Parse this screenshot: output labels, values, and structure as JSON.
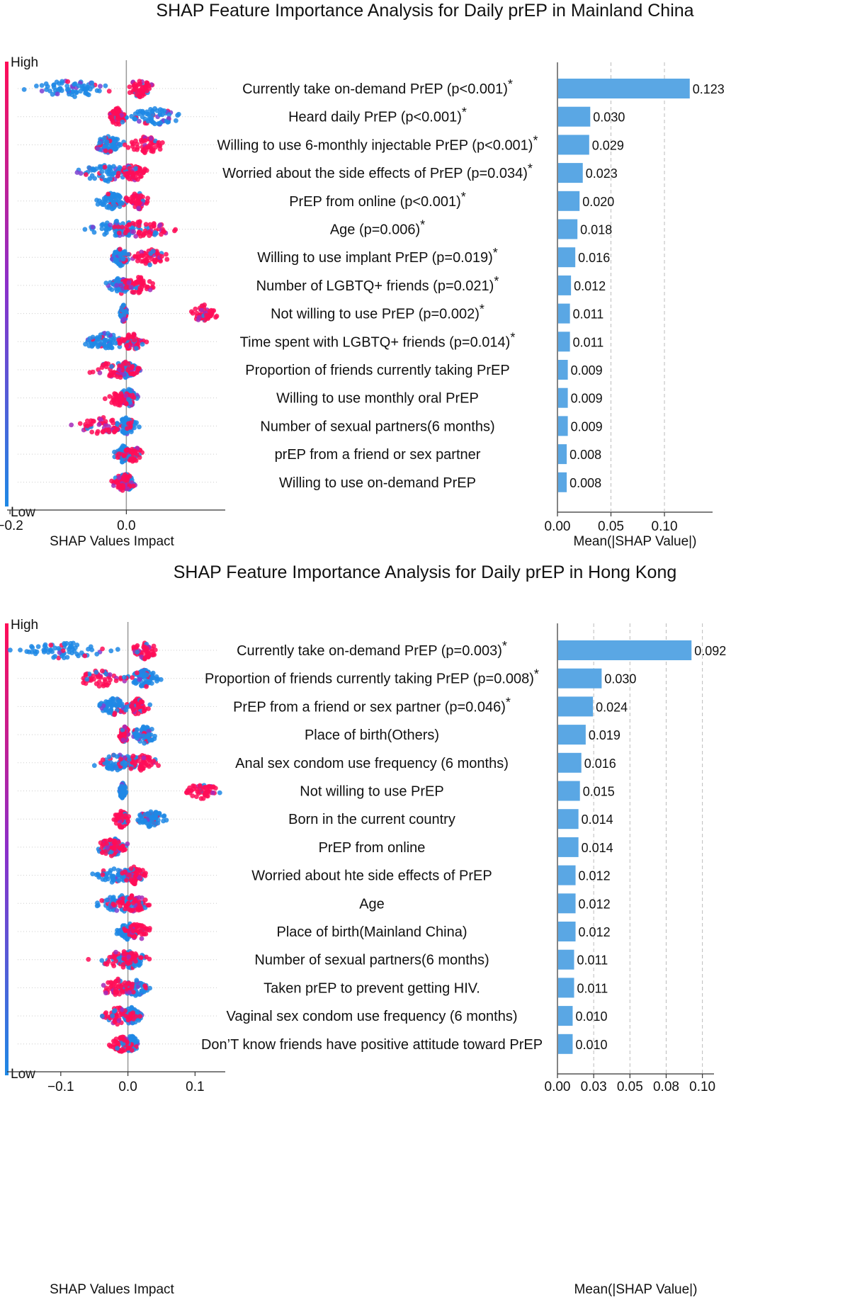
{
  "chart_data": [
    {
      "type": "bar",
      "title": "SHAP Feature Importance Analysis for Daily prEP in Mainland China",
      "summary_plot": {
        "xlabel": "SHAP Values Impact",
        "xticks": [
          "−0.2",
          "0.0"
        ],
        "xlim": [
          -0.205,
          0.17
        ],
        "colorbar": {
          "high_label": "High",
          "low_label": "Low",
          "high_color": "#ff0d57",
          "low_color": "#1e88e5"
        }
      },
      "bar_plot": {
        "xlabel": "Mean(|SHAP Value|)",
        "xticks": [
          "0.00",
          "0.05",
          "0.10"
        ],
        "xlim": [
          0,
          0.145
        ],
        "bar_color": "#5aa7e4"
      },
      "features": [
        {
          "name": "Currently take on-demand PrEP (p<0.001)",
          "star": "*",
          "value": 0.123,
          "value_label": "0.123",
          "low_center": -0.095,
          "low_spread": 0.09,
          "high_center": 0.022,
          "high_spread": 0.035
        },
        {
          "name": "Heard daily PrEP (p<0.001)",
          "star": "*",
          "value": 0.03,
          "value_label": "0.030",
          "low_center": 0.05,
          "low_spread": 0.06,
          "high_center": -0.015,
          "high_spread": 0.02
        },
        {
          "name": "Willing to use 6-monthly injectable PrEP (p<0.001)",
          "star": "*",
          "value": 0.029,
          "value_label": "0.029",
          "low_center": -0.03,
          "low_spread": 0.035,
          "high_center": 0.035,
          "high_spread": 0.045
        },
        {
          "name": "Worried about the side effects of PrEP (p=0.034)",
          "star": "*",
          "value": 0.023,
          "value_label": "0.023",
          "low_center": -0.035,
          "low_spread": 0.07,
          "high_center": 0.01,
          "high_spread": 0.035
        },
        {
          "name": "PrEP from online (p<0.001)",
          "star": "*",
          "value": 0.02,
          "value_label": "0.020",
          "low_center": -0.025,
          "low_spread": 0.035,
          "high_center": 0.02,
          "high_spread": 0.03
        },
        {
          "name": "Age (p=0.006)",
          "star": "*",
          "value": 0.018,
          "value_label": "0.018",
          "low_center": -0.01,
          "low_spread": 0.07,
          "high_center": 0.03,
          "high_spread": 0.07
        },
        {
          "name": "Willing to use implant PrEP (p=0.019)",
          "star": "*",
          "value": 0.016,
          "value_label": "0.016",
          "low_center": -0.01,
          "low_spread": 0.02,
          "high_center": 0.04,
          "high_spread": 0.04
        },
        {
          "name": "Number of LGBTQ+ friends (p=0.021)",
          "star": "*",
          "value": 0.012,
          "value_label": "0.012",
          "low_center": -0.01,
          "low_spread": 0.03,
          "high_center": 0.02,
          "high_spread": 0.04
        },
        {
          "name": "Not willing to use PrEP (p=0.002)",
          "star": "*",
          "value": 0.011,
          "value_label": "0.011",
          "low_center": -0.005,
          "low_spread": 0.008,
          "high_center": 0.135,
          "high_spread": 0.035
        },
        {
          "name": "Time spent with LGBTQ+ friends (p=0.014)",
          "star": "*",
          "value": 0.011,
          "value_label": "0.011",
          "low_center": -0.035,
          "low_spread": 0.05,
          "high_center": 0.01,
          "high_spread": 0.03
        },
        {
          "name": "Proportion of friends currently taking PrEP",
          "star": "",
          "value": 0.009,
          "value_label": "0.009",
          "low_center": 0.0,
          "low_spread": 0.025,
          "high_center": -0.02,
          "high_spread": 0.06
        },
        {
          "name": "Willing to use monthly oral PrEP",
          "star": "",
          "value": 0.009,
          "value_label": "0.009",
          "low_center": 0.005,
          "low_spread": 0.02,
          "high_center": -0.01,
          "high_spread": 0.03
        },
        {
          "name": "Number of sexual partners(6 months)",
          "star": "",
          "value": 0.009,
          "value_label": "0.009",
          "low_center": 0.0,
          "low_spread": 0.025,
          "high_center": -0.04,
          "high_spread": 0.07
        },
        {
          "name": "prEP from a friend or sex partner",
          "star": "",
          "value": 0.008,
          "value_label": "0.008",
          "low_center": -0.005,
          "low_spread": 0.02,
          "high_center": 0.01,
          "high_spread": 0.025
        },
        {
          "name": "Willing to use on-demand PrEP",
          "star": "",
          "value": 0.008,
          "value_label": "0.008",
          "low_center": 0.0,
          "low_spread": 0.02,
          "high_center": -0.005,
          "high_spread": 0.03
        }
      ]
    },
    {
      "type": "bar",
      "title": "SHAP Feature Importance Analysis for Daily prEP in Hong Kong",
      "summary_plot": {
        "xlabel": "SHAP Values Impact",
        "xticks": [
          "−0.1",
          "0.0",
          "0.1"
        ],
        "xlim": [
          -0.18,
          0.145
        ],
        "colorbar": {
          "high_label": "High",
          "low_label": "Low",
          "high_color": "#ff0d57",
          "low_color": "#1e88e5"
        }
      },
      "bar_plot": {
        "xlabel": "Mean(|SHAP Value|)",
        "xticks": [
          "0.00",
          "0.03",
          "0.05",
          "0.08",
          "0.10"
        ],
        "xlim": [
          0,
          0.108
        ],
        "bar_color": "#5aa7e4"
      },
      "features": [
        {
          "name": "Currently take on-demand PrEP (p=0.003)",
          "star": "*",
          "value": 0.092,
          "value_label": "0.092",
          "low_center": -0.095,
          "low_spread": 0.09,
          "high_center": 0.025,
          "high_spread": 0.025
        },
        {
          "name": "Proportion of friends currently taking PrEP (p=0.008)",
          "star": "*",
          "value": 0.03,
          "value_label": "0.030",
          "low_center": 0.025,
          "low_spread": 0.03,
          "high_center": -0.04,
          "high_spread": 0.05
        },
        {
          "name": "PrEP from a friend or sex partner (p=0.046)",
          "star": "*",
          "value": 0.024,
          "value_label": "0.024",
          "low_center": -0.02,
          "low_spread": 0.035,
          "high_center": 0.015,
          "high_spread": 0.02
        },
        {
          "name": "Place of birth(Others)",
          "star": "",
          "value": 0.019,
          "value_label": "0.019",
          "low_center": 0.025,
          "low_spread": 0.025,
          "high_center": -0.005,
          "high_spread": 0.01
        },
        {
          "name": "Anal sex condom use frequency (6 months)",
          "star": "",
          "value": 0.016,
          "value_label": "0.016",
          "low_center": -0.015,
          "low_spread": 0.045,
          "high_center": 0.015,
          "high_spread": 0.04
        },
        {
          "name": "Not willing to use PrEP",
          "star": "",
          "value": 0.015,
          "value_label": "0.015",
          "low_center": -0.008,
          "low_spread": 0.006,
          "high_center": 0.11,
          "high_spread": 0.03
        },
        {
          "name": "Born in the current country",
          "star": "",
          "value": 0.014,
          "value_label": "0.014",
          "low_center": 0.035,
          "low_spread": 0.03,
          "high_center": -0.01,
          "high_spread": 0.015
        },
        {
          "name": "PrEP from online",
          "star": "",
          "value": 0.014,
          "value_label": "0.014",
          "low_center": -0.02,
          "low_spread": 0.02,
          "high_center": -0.025,
          "high_spread": 0.035
        },
        {
          "name": "Worried about hte side effects of PrEP",
          "star": "",
          "value": 0.012,
          "value_label": "0.012",
          "low_center": -0.015,
          "low_spread": 0.045,
          "high_center": 0.01,
          "high_spread": 0.025
        },
        {
          "name": "Age",
          "star": "",
          "value": 0.012,
          "value_label": "0.012",
          "low_center": -0.01,
          "low_spread": 0.05,
          "high_center": 0.01,
          "high_spread": 0.035
        },
        {
          "name": "Place of birth(Mainland China)",
          "star": "",
          "value": 0.012,
          "value_label": "0.012",
          "low_center": 0.0,
          "low_spread": 0.02,
          "high_center": 0.015,
          "high_spread": 0.025
        },
        {
          "name": "Number of sexual partners(6 months)",
          "star": "",
          "value": 0.011,
          "value_label": "0.011",
          "low_center": 0.005,
          "low_spread": 0.03,
          "high_center": -0.01,
          "high_spread": 0.05
        },
        {
          "name": "Taken prEP to prevent getting HIV.",
          "star": "",
          "value": 0.011,
          "value_label": "0.011",
          "low_center": 0.01,
          "low_spread": 0.03,
          "high_center": -0.015,
          "high_spread": 0.04
        },
        {
          "name": "Vaginal sex condom use frequency (6 months)",
          "star": "",
          "value": 0.01,
          "value_label": "0.010",
          "low_center": 0.005,
          "low_spread": 0.02,
          "high_center": -0.015,
          "high_spread": 0.035
        },
        {
          "name": "Don’T know friends have positive attitude toward PrEP",
          "star": "",
          "value": 0.01,
          "value_label": "0.010",
          "low_center": 0.005,
          "low_spread": 0.015,
          "high_center": -0.01,
          "high_spread": 0.02
        }
      ]
    }
  ]
}
